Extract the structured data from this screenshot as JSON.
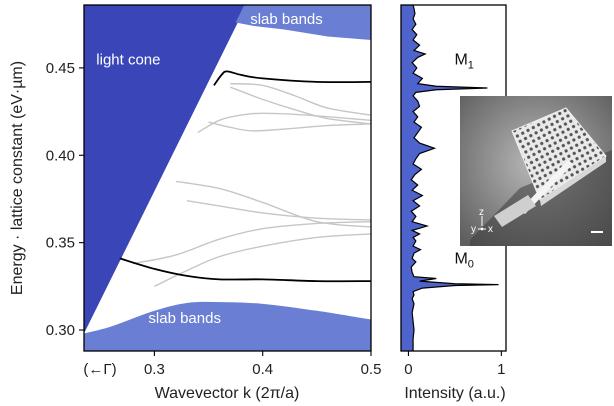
{
  "colors": {
    "light_cone": "#3a46b8",
    "slab_bands": "#6a7fd3",
    "spectrum_fill": "#4f63cc",
    "guided_bands": "#c6c6c6",
    "defect_modes": "#000000"
  },
  "chart_data": [
    {
      "type": "line",
      "id": "band-diagram",
      "xlabel": "Wavevector k (2π/a)",
      "ylabel": "Energy · lattice constant (eV·µm)",
      "xlim": [
        0.235,
        0.5
      ],
      "ylim": [
        0.288,
        0.486
      ],
      "x_ticks": [
        {
          "value": 0.235,
          "label": "(←Γ)"
        },
        {
          "value": 0.3,
          "label": "0.3"
        },
        {
          "value": 0.4,
          "label": "0.4"
        },
        {
          "value": 0.5,
          "label": "0.5"
        }
      ],
      "y_ticks": [
        {
          "value": 0.3,
          "label": "0.30"
        },
        {
          "value": 0.35,
          "label": "0.35"
        },
        {
          "value": 0.4,
          "label": "0.40"
        },
        {
          "value": 0.45,
          "label": "0.45"
        }
      ],
      "regions": [
        {
          "label": "light cone",
          "label_at": [
            0.276,
            0.452
          ]
        },
        {
          "label": "slab bands",
          "label_at": [
            0.422,
            0.475
          ]
        },
        {
          "label": "slab bands",
          "label_at": [
            0.328,
            0.304
          ]
        }
      ],
      "light_cone_boundary": [
        [
          0.235,
          0.298
        ],
        [
          0.385,
          0.486
        ]
      ],
      "slab_band_upper_edge": [
        [
          0.383,
          0.486
        ],
        [
          0.5,
          0.486
        ],
        [
          0.5,
          0.466
        ],
        [
          0.46,
          0.468
        ],
        [
          0.42,
          0.472
        ],
        [
          0.392,
          0.474
        ],
        [
          0.375,
          0.476
        ]
      ],
      "slab_band_lower_edge": [
        [
          0.235,
          0.298
        ],
        [
          0.26,
          0.302
        ],
        [
          0.3,
          0.311
        ],
        [
          0.33,
          0.3155
        ],
        [
          0.36,
          0.316
        ],
        [
          0.4,
          0.315
        ],
        [
          0.45,
          0.311
        ],
        [
          0.49,
          0.307
        ],
        [
          0.5,
          0.306
        ]
      ],
      "guided_bands": [
        {
          "x": [
            0.3,
            0.33,
            0.36,
            0.4,
            0.45,
            0.5
          ],
          "y": [
            0.325,
            0.334,
            0.342,
            0.348,
            0.353,
            0.355
          ]
        },
        {
          "x": [
            0.28,
            0.32,
            0.36,
            0.4,
            0.45,
            0.5
          ],
          "y": [
            0.338,
            0.343,
            0.352,
            0.358,
            0.361,
            0.362
          ]
        },
        {
          "x": [
            0.33,
            0.36,
            0.4,
            0.45,
            0.5
          ],
          "y": [
            0.374,
            0.371,
            0.367,
            0.364,
            0.363
          ]
        },
        {
          "x": [
            0.32,
            0.36,
            0.4,
            0.45,
            0.5
          ],
          "y": [
            0.385,
            0.381,
            0.373,
            0.362,
            0.359
          ]
        },
        {
          "x": [
            0.34,
            0.36,
            0.38,
            0.4,
            0.44,
            0.5
          ],
          "y": [
            0.413,
            0.42,
            0.423,
            0.424,
            0.423,
            0.42
          ]
        },
        {
          "x": [
            0.35,
            0.37,
            0.39,
            0.42,
            0.46,
            0.5
          ],
          "y": [
            0.419,
            0.416,
            0.414,
            0.415,
            0.417,
            0.418
          ]
        },
        {
          "x": [
            0.37,
            0.4,
            0.43,
            0.46,
            0.5
          ],
          "y": [
            0.439,
            0.432,
            0.426,
            0.421,
            0.418
          ]
        },
        {
          "x": [
            0.37,
            0.4,
            0.43,
            0.46,
            0.5
          ],
          "y": [
            0.441,
            0.44,
            0.434,
            0.427,
            0.423
          ]
        }
      ],
      "defect_modes": [
        {
          "name": "M1",
          "x": [
            0.355,
            0.362,
            0.367,
            0.38,
            0.4,
            0.45,
            0.5
          ],
          "y": [
            0.44,
            0.446,
            0.448,
            0.446,
            0.444,
            0.442,
            0.442
          ]
        },
        {
          "name": "M0",
          "x": [
            0.268,
            0.3,
            0.33,
            0.36,
            0.4,
            0.45,
            0.5
          ],
          "y": [
            0.341,
            0.335,
            0.331,
            0.329,
            0.329,
            0.328,
            0.328
          ]
        }
      ]
    },
    {
      "type": "area",
      "id": "intensity-spectrum",
      "xlabel": "Intensity (a.u.)",
      "xlim": [
        -0.08,
        1.05
      ],
      "ylim": [
        0.288,
        0.486
      ],
      "x_ticks": [
        {
          "value": 0,
          "label": "0"
        },
        {
          "value": 1,
          "label": "1"
        }
      ],
      "peaks": [
        {
          "label": "M",
          "subscript": "1",
          "energy": 0.4385,
          "intensity": 0.85,
          "label_at": [
            0.6,
            0.452
          ]
        },
        {
          "label": "M",
          "subscript": "0",
          "energy": 0.326,
          "intensity": 0.97,
          "label_at": [
            0.6,
            0.338
          ]
        }
      ],
      "spectrum": [
        [
          0.288,
          0.05
        ],
        [
          0.295,
          0.05
        ],
        [
          0.3,
          0.06
        ],
        [
          0.305,
          0.05
        ],
        [
          0.31,
          0.04
        ],
        [
          0.315,
          0.06
        ],
        [
          0.318,
          0.04
        ],
        [
          0.32,
          0.06
        ],
        [
          0.322,
          0.05
        ],
        [
          0.324,
          0.15
        ],
        [
          0.3255,
          0.5
        ],
        [
          0.326,
          0.97
        ],
        [
          0.3265,
          0.5
        ],
        [
          0.328,
          0.12
        ],
        [
          0.3295,
          0.3
        ],
        [
          0.3305,
          0.06
        ],
        [
          0.333,
          0.04
        ],
        [
          0.336,
          0.03
        ],
        [
          0.339,
          0.08
        ],
        [
          0.341,
          0.04
        ],
        [
          0.344,
          0.06
        ],
        [
          0.346,
          0.13
        ],
        [
          0.348,
          0.05
        ],
        [
          0.351,
          0.08
        ],
        [
          0.353,
          0.05
        ],
        [
          0.355,
          0.12
        ],
        [
          0.357,
          0.04
        ],
        [
          0.3595,
          0.2
        ],
        [
          0.362,
          0.04
        ],
        [
          0.365,
          0.08
        ],
        [
          0.368,
          0.03
        ],
        [
          0.371,
          0.12
        ],
        [
          0.374,
          0.05
        ],
        [
          0.377,
          0.15
        ],
        [
          0.38,
          0.04
        ],
        [
          0.383,
          0.1
        ],
        [
          0.386,
          0.03
        ],
        [
          0.389,
          0.07
        ],
        [
          0.392,
          0.14
        ],
        [
          0.395,
          0.05
        ],
        [
          0.398,
          0.08
        ],
        [
          0.401,
          0.12
        ],
        [
          0.404,
          0.28
        ],
        [
          0.407,
          0.12
        ],
        [
          0.41,
          0.06
        ],
        [
          0.413,
          0.1
        ],
        [
          0.416,
          0.14
        ],
        [
          0.419,
          0.06
        ],
        [
          0.422,
          0.1
        ],
        [
          0.425,
          0.05
        ],
        [
          0.428,
          0.12
        ],
        [
          0.431,
          0.1
        ],
        [
          0.434,
          0.05
        ],
        [
          0.436,
          0.08
        ],
        [
          0.4375,
          0.3
        ],
        [
          0.4385,
          0.85
        ],
        [
          0.4395,
          0.3
        ],
        [
          0.441,
          0.1
        ],
        [
          0.444,
          0.15
        ],
        [
          0.447,
          0.05
        ],
        [
          0.45,
          0.09
        ],
        [
          0.453,
          0.04
        ],
        [
          0.456,
          0.1
        ],
        [
          0.458,
          0.18
        ],
        [
          0.46,
          0.06
        ],
        [
          0.463,
          0.12
        ],
        [
          0.466,
          0.05
        ],
        [
          0.469,
          0.09
        ],
        [
          0.472,
          0.04
        ],
        [
          0.475,
          0.08
        ],
        [
          0.478,
          0.05
        ],
        [
          0.481,
          0.07
        ],
        [
          0.484,
          0.06
        ],
        [
          0.486,
          0.05
        ]
      ]
    }
  ],
  "inset": {
    "kind": "micrograph-of-photonic-crystal-slab",
    "axes_label_y": "y",
    "axes_label_z": "z",
    "axes_label_x": "x"
  }
}
